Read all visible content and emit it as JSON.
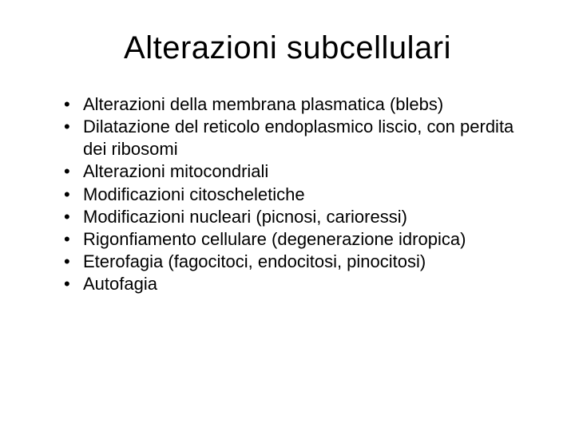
{
  "slide": {
    "title": "Alterazioni subcellulari",
    "title_fontsize": 40,
    "title_color": "#000000",
    "body_fontsize": 22,
    "body_color": "#000000",
    "background_color": "#ffffff",
    "font_family": "Comic Sans MS",
    "bullets": [
      "Alterazioni della membrana plasmatica (blebs)",
      "Dilatazione del reticolo endoplasmico liscio, con perdita dei ribosomi",
      "Alterazioni mitocondriali",
      "Modificazioni citoscheletiche",
      "Modificazioni nucleari (picnosi, carioressi)",
      "Rigonfiamento cellulare (degenerazione idropica)",
      "Eterofagia (fagocitoci, endocitosi, pinocitosi)",
      "Autofagia"
    ]
  }
}
